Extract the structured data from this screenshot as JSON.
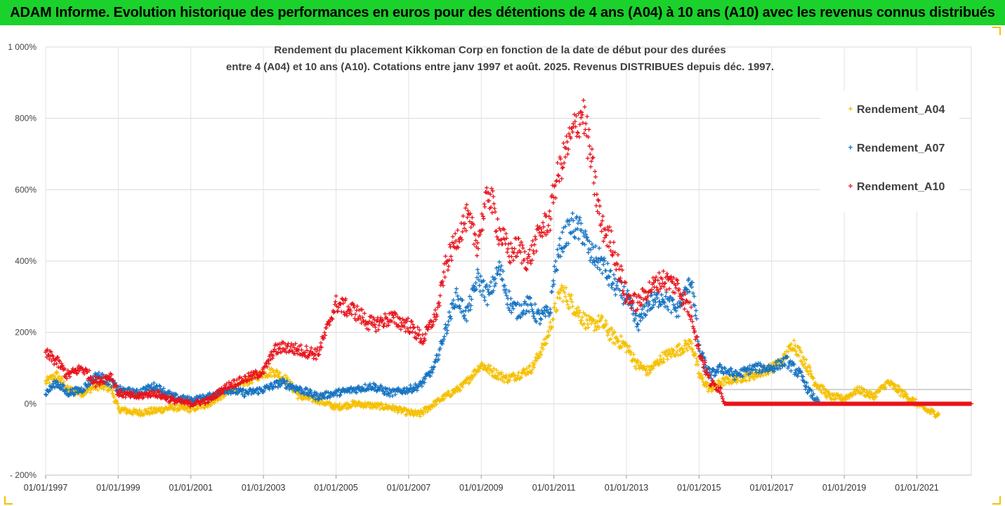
{
  "banner": {
    "title": "ADAM Informe. Evolution historique des performances en euros pour des détentions de 4 ans (A04) à 10 ans (A10) avec les revenus connus distribués"
  },
  "colors": {
    "banner_bg": "#1bd12b",
    "a04": "#f5c000",
    "a07": "#1673c2",
    "a10": "#e8141c",
    "grid": "#d9d9d9",
    "frame_accent": "#f2c200"
  },
  "chart_data": {
    "type": "scatter",
    "marker": "plus",
    "title_lines": [
      "Rendement du placement Kikkoman Corp en fonction de la date de début pour des durées",
      "entre 4 (A04) et 10 ans (A10). Cotations entre janv 1997 et août. 2025. Revenus DISTRIBUES depuis déc. 1997."
    ],
    "xlabel": "",
    "ylabel": "",
    "x_range": [
      1997.0,
      2022.5
    ],
    "y_range": [
      -200,
      1000
    ],
    "y_ticks": [
      -200,
      0,
      200,
      400,
      600,
      800,
      1000
    ],
    "y_tick_labels": [
      "- 200%",
      "0%",
      "200%",
      "400%",
      "600%",
      "800%",
      "1 000%"
    ],
    "x_ticks": [
      1997,
      1999,
      2001,
      2003,
      2005,
      2007,
      2009,
      2011,
      2013,
      2015,
      2017,
      2019,
      2021
    ],
    "x_tick_labels": [
      "01/01/1997",
      "01/01/1999",
      "01/01/2001",
      "01/01/2003",
      "01/01/2005",
      "01/01/2007",
      "01/01/2009",
      "01/01/2011",
      "01/01/2013",
      "01/01/2015",
      "01/01/2017",
      "01/01/2019",
      "01/01/2021"
    ],
    "grid": "horizontal",
    "legend_position": "right",
    "series": [
      {
        "name": "Rendement_A04",
        "color": "#f5c000",
        "points": [
          [
            1997.0,
            60
          ],
          [
            1997.3,
            80
          ],
          [
            1997.6,
            40
          ],
          [
            1998.0,
            30
          ],
          [
            1998.4,
            50
          ],
          [
            1998.8,
            45
          ],
          [
            1999.0,
            -15
          ],
          [
            1999.5,
            -25
          ],
          [
            2000.0,
            -20
          ],
          [
            2000.5,
            -10
          ],
          [
            2001.0,
            -15
          ],
          [
            2001.5,
            0
          ],
          [
            2002.0,
            30
          ],
          [
            2002.5,
            60
          ],
          [
            2003.0,
            85
          ],
          [
            2003.3,
            90
          ],
          [
            2003.6,
            70
          ],
          [
            2004.0,
            20
          ],
          [
            2004.5,
            10
          ],
          [
            2005.0,
            -10
          ],
          [
            2005.5,
            0
          ],
          [
            2006.0,
            -5
          ],
          [
            2006.5,
            -10
          ],
          [
            2007.0,
            -25
          ],
          [
            2007.3,
            -30
          ],
          [
            2007.7,
            0
          ],
          [
            2008.0,
            20
          ],
          [
            2008.5,
            50
          ],
          [
            2009.0,
            110
          ],
          [
            2009.3,
            90
          ],
          [
            2009.7,
            70
          ],
          [
            2010.0,
            80
          ],
          [
            2010.4,
            100
          ],
          [
            2010.8,
            180
          ],
          [
            2011.0,
            250
          ],
          [
            2011.2,
            320
          ],
          [
            2011.5,
            280
          ],
          [
            2011.8,
            240
          ],
          [
            2012.0,
            220
          ],
          [
            2012.3,
            230
          ],
          [
            2012.6,
            190
          ],
          [
            2013.0,
            160
          ],
          [
            2013.3,
            110
          ],
          [
            2013.6,
            90
          ],
          [
            2014.0,
            130
          ],
          [
            2014.4,
            150
          ],
          [
            2014.8,
            170
          ],
          [
            2015.0,
            80
          ],
          [
            2015.3,
            40
          ],
          [
            2015.6,
            60
          ],
          [
            2016.0,
            70
          ],
          [
            2016.5,
            80
          ],
          [
            2017.0,
            100
          ],
          [
            2017.3,
            120
          ],
          [
            2017.6,
            170
          ],
          [
            2017.9,
            120
          ],
          [
            2018.2,
            60
          ],
          [
            2018.6,
            20
          ],
          [
            2019.0,
            15
          ],
          [
            2019.4,
            40
          ],
          [
            2019.8,
            20
          ],
          [
            2020.2,
            60
          ],
          [
            2020.6,
            30
          ],
          [
            2021.0,
            0
          ],
          [
            2021.3,
            -20
          ],
          [
            2021.6,
            -30
          ]
        ]
      },
      {
        "name": "Rendement_A07",
        "color": "#1673c2",
        "points": [
          [
            1997.0,
            30
          ],
          [
            1997.3,
            60
          ],
          [
            1997.6,
            30
          ],
          [
            1998.0,
            40
          ],
          [
            1998.4,
            80
          ],
          [
            1998.8,
            60
          ],
          [
            1999.0,
            40
          ],
          [
            1999.5,
            30
          ],
          [
            2000.0,
            50
          ],
          [
            2000.5,
            20
          ],
          [
            2001.0,
            10
          ],
          [
            2001.5,
            20
          ],
          [
            2002.0,
            40
          ],
          [
            2002.5,
            30
          ],
          [
            2003.0,
            40
          ],
          [
            2003.5,
            60
          ],
          [
            2004.0,
            40
          ],
          [
            2004.5,
            20
          ],
          [
            2005.0,
            30
          ],
          [
            2005.5,
            40
          ],
          [
            2006.0,
            50
          ],
          [
            2006.5,
            30
          ],
          [
            2007.0,
            40
          ],
          [
            2007.3,
            50
          ],
          [
            2007.7,
            100
          ],
          [
            2008.0,
            200
          ],
          [
            2008.3,
            300
          ],
          [
            2008.6,
            250
          ],
          [
            2008.9,
            350
          ],
          [
            2009.2,
            300
          ],
          [
            2009.5,
            380
          ],
          [
            2009.8,
            280
          ],
          [
            2010.0,
            260
          ],
          [
            2010.3,
            280
          ],
          [
            2010.6,
            240
          ],
          [
            2010.9,
            260
          ],
          [
            2011.0,
            360
          ],
          [
            2011.2,
            450
          ],
          [
            2011.5,
            500
          ],
          [
            2011.8,
            480
          ],
          [
            2012.0,
            420
          ],
          [
            2012.3,
            400
          ],
          [
            2012.6,
            340
          ],
          [
            2013.0,
            300
          ],
          [
            2013.3,
            220
          ],
          [
            2013.6,
            280
          ],
          [
            2014.0,
            300
          ],
          [
            2014.4,
            260
          ],
          [
            2014.8,
            350
          ],
          [
            2015.0,
            150
          ],
          [
            2015.3,
            80
          ],
          [
            2015.6,
            100
          ],
          [
            2016.0,
            80
          ],
          [
            2016.5,
            100
          ],
          [
            2017.0,
            100
          ],
          [
            2017.4,
            120
          ],
          [
            2017.8,
            80
          ],
          [
            2018.0,
            40
          ],
          [
            2018.3,
            0
          ]
        ]
      },
      {
        "name": "Rendement_A10",
        "color": "#e8141c",
        "points": [
          [
            1997.0,
            140
          ],
          [
            1997.3,
            120
          ],
          [
            1997.6,
            80
          ],
          [
            1998.0,
            100
          ],
          [
            1998.4,
            60
          ],
          [
            1998.8,
            80
          ],
          [
            1999.0,
            30
          ],
          [
            1999.5,
            20
          ],
          [
            2000.0,
            30
          ],
          [
            2000.5,
            10
          ],
          [
            2001.0,
            0
          ],
          [
            2001.5,
            10
          ],
          [
            2002.0,
            50
          ],
          [
            2002.5,
            70
          ],
          [
            2003.0,
            90
          ],
          [
            2003.3,
            150
          ],
          [
            2003.6,
            160
          ],
          [
            2004.0,
            150
          ],
          [
            2004.5,
            140
          ],
          [
            2005.0,
            280
          ],
          [
            2005.5,
            260
          ],
          [
            2006.0,
            220
          ],
          [
            2006.5,
            240
          ],
          [
            2007.0,
            220
          ],
          [
            2007.4,
            180
          ],
          [
            2007.8,
            260
          ],
          [
            2008.0,
            380
          ],
          [
            2008.3,
            460
          ],
          [
            2008.6,
            520
          ],
          [
            2008.9,
            450
          ],
          [
            2009.2,
            600
          ],
          [
            2009.5,
            480
          ],
          [
            2009.8,
            420
          ],
          [
            2010.0,
            440
          ],
          [
            2010.3,
            400
          ],
          [
            2010.6,
            480
          ],
          [
            2010.9,
            520
          ],
          [
            2011.0,
            600
          ],
          [
            2011.3,
            700
          ],
          [
            2011.6,
            780
          ],
          [
            2011.8,
            820
          ],
          [
            2012.0,
            700
          ],
          [
            2012.3,
            500
          ],
          [
            2012.6,
            450
          ],
          [
            2013.0,
            300
          ],
          [
            2013.3,
            280
          ],
          [
            2013.6,
            320
          ],
          [
            2014.0,
            350
          ],
          [
            2014.4,
            330
          ],
          [
            2014.8,
            250
          ],
          [
            2015.0,
            150
          ],
          [
            2015.3,
            60
          ],
          [
            2015.6,
            40
          ],
          [
            2015.7,
            0
          ],
          [
            2016.5,
            0
          ],
          [
            2017.5,
            0
          ],
          [
            2018.5,
            0
          ],
          [
            2019.5,
            0
          ],
          [
            2020.5,
            0
          ],
          [
            2021.5,
            0
          ],
          [
            2022.5,
            0
          ]
        ]
      }
    ]
  }
}
